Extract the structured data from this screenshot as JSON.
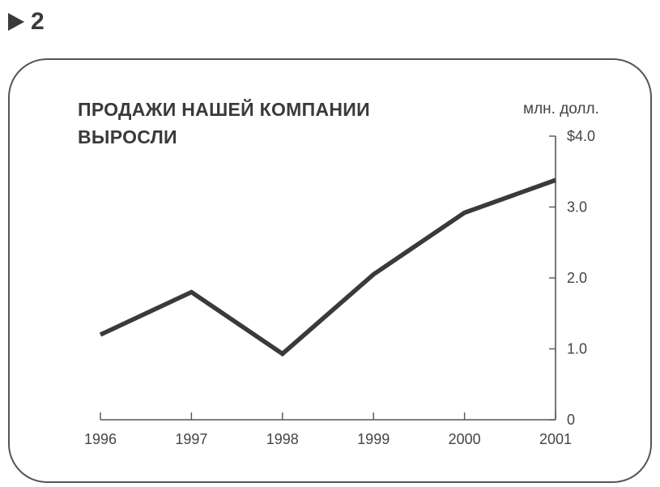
{
  "figure": {
    "number": "2"
  },
  "chart_data": {
    "type": "line",
    "title": "ПРОДАЖИ НАШЕЙ КОМПАНИИ ВЫРОСЛИ",
    "title_lines": [
      "ПРОДАЖИ НАШЕЙ КОМПАНИИ",
      "ВЫРОСЛИ"
    ],
    "ylabel": "млн. долл.",
    "xlabel": "",
    "categories": [
      "1996",
      "1997",
      "1998",
      "1999",
      "2000",
      "2001"
    ],
    "series": [
      {
        "values": [
          1.2,
          1.8,
          0.93,
          2.05,
          2.92,
          3.38
        ]
      }
    ],
    "ylim": [
      0,
      4
    ],
    "y_ticks": [
      {
        "value": 0,
        "label": "0"
      },
      {
        "value": 1,
        "label": "1.0"
      },
      {
        "value": 2,
        "label": "2.0"
      },
      {
        "value": 3,
        "label": "3.0"
      },
      {
        "value": 4,
        "label": "$4.0"
      }
    ],
    "y_axis_side": "right",
    "grid": false,
    "line_color": "#3a3a3a"
  }
}
